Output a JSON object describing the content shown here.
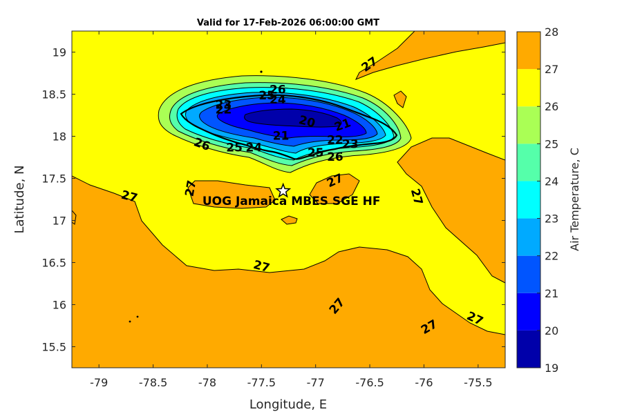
{
  "chart_data": {
    "type": "contour",
    "title": "Valid for 17-Feb-2026 06:00:00 GMT",
    "xlabel": "Longitude, E",
    "ylabel": "Latitude, N",
    "xlim": [
      -79.25,
      -75.25
    ],
    "ylim": [
      15.25,
      19.25
    ],
    "xticks": [
      -79,
      -78.5,
      -78,
      -77.5,
      -77,
      -76.5,
      -76,
      -75.5
    ],
    "xtick_labels": [
      "-79",
      "-78.5",
      "-78",
      "-77.5",
      "-77",
      "-76.5",
      "-76",
      "-75.5"
    ],
    "yticks": [
      15.5,
      16,
      16.5,
      17,
      17.5,
      18,
      18.5,
      19
    ],
    "ytick_labels": [
      "15.5",
      "16",
      "16.5",
      "17",
      "17.5",
      "18",
      "18.5",
      "19"
    ],
    "colorbar": {
      "label": "Air Temperature, C",
      "levels": [
        19,
        20,
        21,
        22,
        23,
        24,
        25,
        26,
        27,
        28
      ],
      "tick_labels": [
        "19",
        "20",
        "21",
        "22",
        "23",
        "24",
        "25",
        "26",
        "27",
        "28"
      ],
      "colors": [
        "#0000aa",
        "#0000ff",
        "#0055ff",
        "#00aaff",
        "#00ffff",
        "#55ffaa",
        "#aaff55",
        "#ffff00",
        "#ffaa00",
        "#ff5500"
      ]
    },
    "background_color": "#ffff00",
    "warm_color": "#ffaa00",
    "contour_labels": [
      {
        "text": "27",
        "lon": -78.72,
        "lat": 17.28,
        "angle": 15
      },
      {
        "text": "27",
        "lon": -78.15,
        "lat": 17.38,
        "angle": -80
      },
      {
        "text": "27",
        "lon": -77.5,
        "lat": 16.45,
        "angle": 15
      },
      {
        "text": "27",
        "lon": -76.82,
        "lat": 17.47,
        "angle": -25
      },
      {
        "text": "27",
        "lon": -76.07,
        "lat": 17.28,
        "angle": 75
      },
      {
        "text": "27",
        "lon": -76.5,
        "lat": 18.85,
        "angle": -35
      },
      {
        "text": "27",
        "lon": -76.8,
        "lat": 15.98,
        "angle": -50
      },
      {
        "text": "27",
        "lon": -75.95,
        "lat": 15.73,
        "angle": -30
      },
      {
        "text": "27",
        "lon": -75.53,
        "lat": 15.83,
        "angle": 25
      },
      {
        "text": "26",
        "lon": -77.35,
        "lat": 18.55,
        "angle": 0
      },
      {
        "text": "26",
        "lon": -78.05,
        "lat": 17.9,
        "angle": 20
      },
      {
        "text": "26",
        "lon": -76.82,
        "lat": 17.75,
        "angle": 0
      },
      {
        "text": "25",
        "lon": -77.45,
        "lat": 18.48,
        "angle": 0
      },
      {
        "text": "25",
        "lon": -77.75,
        "lat": 17.86,
        "angle": 0
      },
      {
        "text": "25",
        "lon": -77.0,
        "lat": 17.8,
        "angle": 0
      },
      {
        "text": "24",
        "lon": -77.35,
        "lat": 18.43,
        "angle": 0
      },
      {
        "text": "24",
        "lon": -77.57,
        "lat": 17.86,
        "angle": 0
      },
      {
        "text": "23",
        "lon": -77.85,
        "lat": 18.37,
        "angle": 0
      },
      {
        "text": "23",
        "lon": -76.68,
        "lat": 17.9,
        "angle": 0
      },
      {
        "text": "22",
        "lon": -77.85,
        "lat": 18.31,
        "angle": 0
      },
      {
        "text": "22",
        "lon": -76.82,
        "lat": 17.95,
        "angle": 0
      },
      {
        "text": "21",
        "lon": -77.32,
        "lat": 18.0,
        "angle": 0
      },
      {
        "text": "21",
        "lon": -76.75,
        "lat": 18.13,
        "angle": -20
      },
      {
        "text": "20",
        "lon": -77.08,
        "lat": 18.17,
        "angle": 15
      }
    ],
    "station": {
      "name": "UOG Jamaica MBES SGE HF",
      "lon": -77.3,
      "lat": 17.35
    }
  }
}
